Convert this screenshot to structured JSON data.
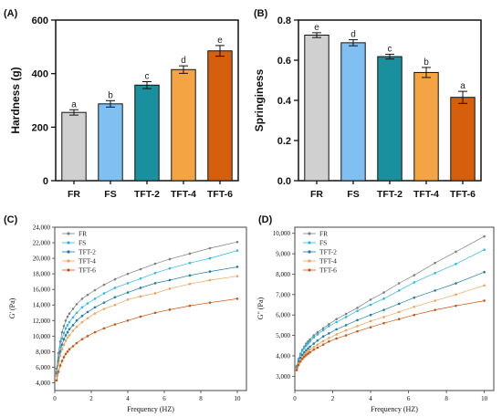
{
  "colors": {
    "FR": "#d0d0d0",
    "FS": "#7fbff2",
    "TFT-2": "#1a8f9e",
    "TFT-4": "#f5a443",
    "TFT-6": "#d55f0c"
  },
  "line_colors": {
    "FR": "#808080",
    "FS": "#28b8ea",
    "TFT-2": "#1f7ca8",
    "TFT-4": "#f0a35a",
    "TFT-6": "#c95512"
  },
  "chart_data": [
    {
      "panel": "(A)",
      "type": "bar",
      "categories": [
        "FR",
        "FS",
        "TFT-2",
        "TFT-4",
        "TFT-6"
      ],
      "values": [
        255,
        287,
        357,
        415,
        485
      ],
      "errors": [
        10,
        12,
        13,
        14,
        20
      ],
      "significance": [
        "a",
        "b",
        "c",
        "d",
        "e"
      ],
      "ylabel": "Hardness (g)",
      "ylim": [
        0,
        600
      ],
      "yticks": [
        0,
        200,
        400,
        600
      ],
      "ytick_labels": [
        "0",
        "200",
        "400",
        "600"
      ]
    },
    {
      "panel": "(B)",
      "type": "bar",
      "categories": [
        "FR",
        "FS",
        "TFT-2",
        "TFT-4",
        "TFT-6"
      ],
      "values": [
        0.725,
        0.687,
        0.618,
        0.539,
        0.415
      ],
      "errors": [
        0.012,
        0.015,
        0.012,
        0.025,
        0.03
      ],
      "significance": [
        "e",
        "d",
        "c",
        "b",
        "a"
      ],
      "ylabel": "Springiness",
      "ylim": [
        0,
        0.8
      ],
      "yticks": [
        0,
        0.2,
        0.4,
        0.6,
        0.8
      ],
      "ytick_labels": [
        "0.0",
        "0.2",
        "0.4",
        "0.6",
        "0.8"
      ]
    },
    {
      "panel": "(C)",
      "type": "line",
      "xlabel": "Frequency (HZ)",
      "ylabel": "G' (Pa)",
      "xlim": [
        0,
        10.5
      ],
      "ylim": [
        3000,
        24000
      ],
      "xticks": [
        0,
        2,
        4,
        6,
        8,
        10
      ],
      "xtick_labels": [
        "0",
        "2",
        "4",
        "6",
        "8",
        "10"
      ],
      "yticks": [
        4000,
        6000,
        8000,
        10000,
        12000,
        14000,
        16000,
        18000,
        20000,
        22000,
        24000
      ],
      "ytick_labels": [
        "4,000",
        "6,000",
        "8,000",
        "10,000",
        "12,000",
        "14,000",
        "16,000",
        "18,000",
        "20,000",
        "22,000",
        "24,000"
      ],
      "legend_position": "top-left",
      "x": [
        0.1,
        0.2,
        0.3,
        0.4,
        0.5,
        0.6,
        0.7,
        0.8,
        1.0,
        1.2,
        1.5,
        1.8,
        2.2,
        2.7,
        3.3,
        4.0,
        4.7,
        5.5,
        6.3,
        7.4,
        8.5,
        10.0
      ],
      "series": [
        {
          "name": "FR",
          "values": [
            5800,
            7800,
            9300,
            10500,
            11300,
            12000,
            12500,
            12900,
            13500,
            14100,
            14800,
            15300,
            15900,
            16600,
            17300,
            18000,
            18600,
            19300,
            19900,
            20600,
            21300,
            22100
          ]
        },
        {
          "name": "FS",
          "values": [
            5400,
            7200,
            8600,
            9700,
            10400,
            11000,
            11400,
            11800,
            12400,
            13000,
            13700,
            14200,
            14800,
            15500,
            16200,
            16800,
            17400,
            18100,
            18700,
            19400,
            20000,
            21000
          ]
        },
        {
          "name": "TFT-2",
          "values": [
            5200,
            6800,
            8000,
            8900,
            9600,
            10100,
            10500,
            10900,
            11400,
            12000,
            12600,
            13100,
            13700,
            14300,
            15000,
            15600,
            16200,
            16800,
            17200,
            17800,
            18300,
            18900
          ]
        },
        {
          "name": "TFT-4",
          "values": [
            4900,
            6400,
            7500,
            8300,
            8900,
            9400,
            9800,
            10100,
            10700,
            11200,
            11800,
            12300,
            12900,
            13500,
            14000,
            14700,
            15100,
            15500,
            16100,
            16700,
            17200,
            17700
          ]
        },
        {
          "name": "TFT-6",
          "values": [
            4300,
            5400,
            6200,
            6800,
            7300,
            7700,
            8000,
            8300,
            8700,
            9100,
            9600,
            10000,
            10500,
            11000,
            11500,
            12000,
            12500,
            13000,
            13400,
            13900,
            14300,
            14800
          ]
        }
      ]
    },
    {
      "panel": "(D)",
      "type": "line",
      "xlabel": "Frequency (HZ)",
      "ylabel": "G\" (Pa)",
      "xlim": [
        0,
        10.5
      ],
      "ylim": [
        2300,
        10300
      ],
      "xticks": [
        0,
        2,
        4,
        6,
        8,
        10
      ],
      "xtick_labels": [
        "0",
        "2",
        "4",
        "6",
        "8",
        "10"
      ],
      "yticks": [
        3000,
        4000,
        5000,
        6000,
        7000,
        8000,
        9000,
        10000
      ],
      "ytick_labels": [
        "3,000",
        "4,000",
        "5,000",
        "6,000",
        "7,000",
        "8,000",
        "9,000",
        "10,000"
      ],
      "legend_position": "top-left",
      "x": [
        0.1,
        0.2,
        0.3,
        0.4,
        0.5,
        0.6,
        0.7,
        0.8,
        1.0,
        1.2,
        1.5,
        1.8,
        2.2,
        2.7,
        3.3,
        4.0,
        4.7,
        5.5,
        6.3,
        7.4,
        8.5,
        10.0
      ],
      "series": [
        {
          "name": "FR",
          "values": [
            3500,
            3850,
            4100,
            4300,
            4450,
            4600,
            4700,
            4800,
            5000,
            5150,
            5350,
            5550,
            5800,
            6050,
            6350,
            6750,
            7100,
            7550,
            7950,
            8550,
            9100,
            9850
          ]
        },
        {
          "name": "FS",
          "values": [
            3450,
            3800,
            4050,
            4250,
            4380,
            4500,
            4600,
            4700,
            4900,
            5050,
            5250,
            5450,
            5650,
            5900,
            6200,
            6500,
            6800,
            7200,
            7600,
            8050,
            8500,
            9200
          ]
        },
        {
          "name": "TFT-2",
          "values": [
            3400,
            3700,
            3900,
            4050,
            4170,
            4270,
            4360,
            4450,
            4600,
            4750,
            4950,
            5100,
            5300,
            5500,
            5750,
            6000,
            6250,
            6550,
            6850,
            7200,
            7550,
            8100
          ]
        },
        {
          "name": "TFT-4",
          "values": [
            3350,
            3620,
            3800,
            3940,
            4050,
            4140,
            4220,
            4300,
            4430,
            4550,
            4720,
            4870,
            5050,
            5250,
            5450,
            5700,
            5900,
            6150,
            6400,
            6700,
            7000,
            7450
          ]
        },
        {
          "name": "TFT-6",
          "values": [
            3300,
            3550,
            3720,
            3850,
            3950,
            4030,
            4100,
            4170,
            4300,
            4400,
            4550,
            4700,
            4850,
            5000,
            5200,
            5400,
            5600,
            5800,
            6000,
            6250,
            6450,
            6700
          ]
        }
      ]
    }
  ]
}
